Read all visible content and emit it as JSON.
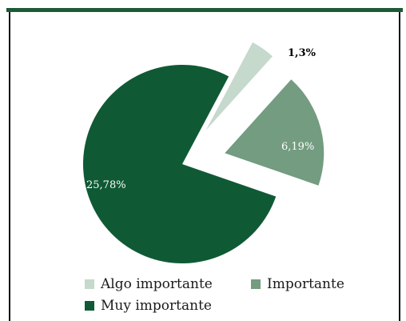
{
  "chart_data": {
    "type": "pie",
    "title": "",
    "series": [
      {
        "name": "Algo importante",
        "label": "1,3%",
        "value": 1.3,
        "color": "#c5d9cc"
      },
      {
        "name": "Importante",
        "label": "6,19%",
        "value": 6.19,
        "color": "#739c80"
      },
      {
        "name": "Muy importante",
        "label": "25,78%",
        "value": 25.78,
        "color": "#0f5a35"
      }
    ],
    "legend_position": "bottom"
  }
}
